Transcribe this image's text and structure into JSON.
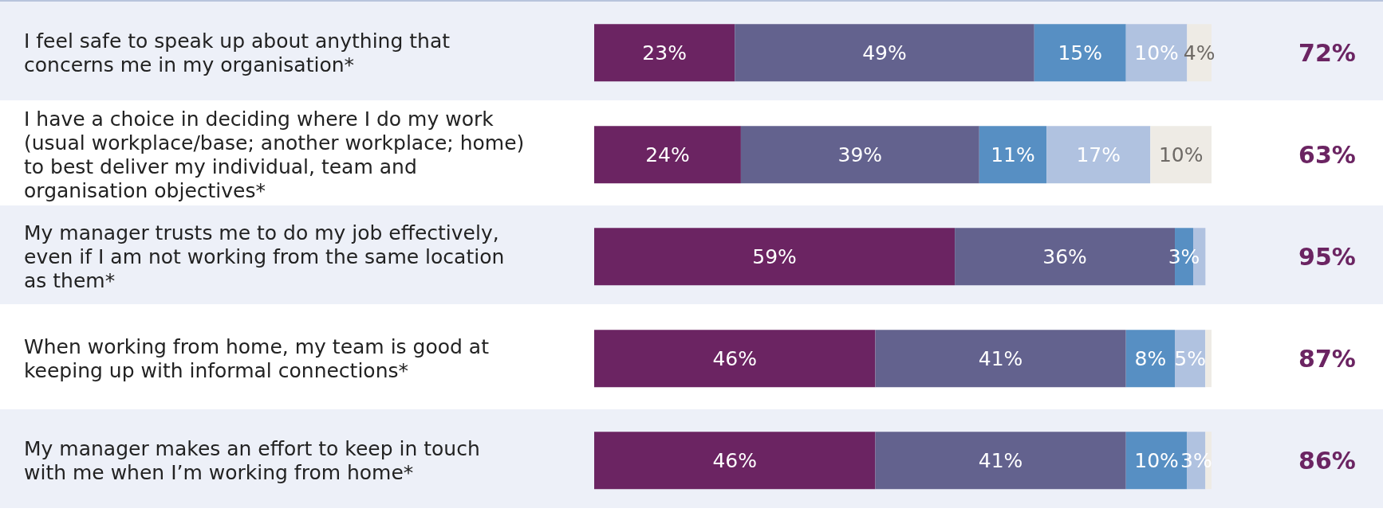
{
  "chart_data": {
    "type": "bar",
    "orientation": "horizontal",
    "stacked": true,
    "categories": [
      "I feel safe to speak up about anything that concerns me in my organisation*",
      "I have a choice in deciding where I do my work (usual workplace/base; another workplace; home) to best deliver my individual, team and organisation objectives*",
      "My manager trusts me to do my job effectively, even if I am not working from the same location as them*",
      "When working from home, my team is good at keeping up with informal connections*",
      "My manager makes an effort to keep in touch with me when I’m working from home*"
    ],
    "series": [
      {
        "color": "#6b2462",
        "values": [
          23,
          24,
          59,
          46,
          46
        ],
        "value_labels": [
          "23%",
          "24%",
          "59%",
          "46%",
          "46%"
        ]
      },
      {
        "color": "#63628e",
        "values": [
          49,
          39,
          36,
          41,
          41
        ],
        "value_labels": [
          "49%",
          "39%",
          "36%",
          "41%",
          "41%"
        ]
      },
      {
        "color": "#578fc3",
        "values": [
          15,
          11,
          3,
          8,
          10
        ],
        "value_labels": [
          "15%",
          "11%",
          "3%",
          "8%",
          "10%"
        ]
      },
      {
        "color": "#b0c2e0",
        "values": [
          10,
          17,
          2,
          5,
          3
        ],
        "value_labels": [
          "10%",
          "17%",
          null,
          "5%",
          "3%"
        ]
      },
      {
        "color": "#eeebe5",
        "values": [
          4,
          10,
          0,
          1,
          1
        ],
        "value_labels": [
          "4%",
          "10%",
          null,
          null,
          null
        ]
      }
    ],
    "xlim": [
      0,
      101
    ],
    "tick_labels": false,
    "annotations": [
      "72%",
      "63%",
      "95%",
      "87%",
      "86%"
    ]
  }
}
